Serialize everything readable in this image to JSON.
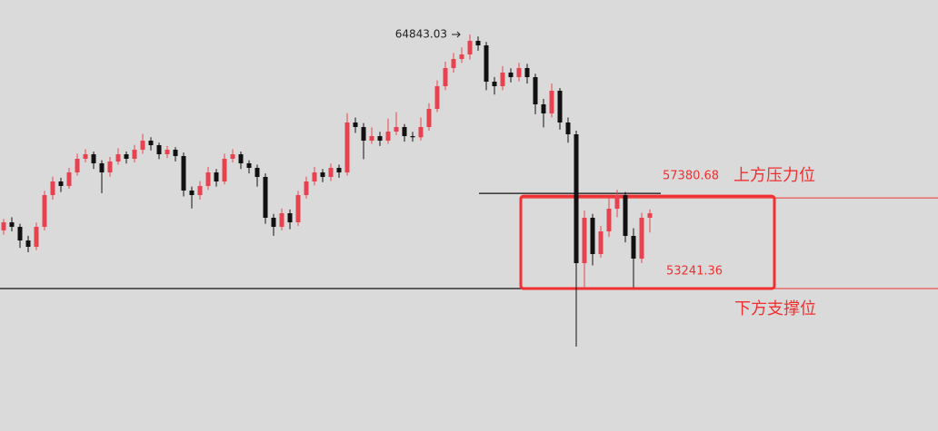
{
  "chart_data": {
    "type": "candlestick",
    "up_color": "#e8414f",
    "down_color": "#111111",
    "level_color": "#f03030",
    "ylim": [
      46738,
      66417
    ],
    "peak": 64843.03,
    "levels": [
      {
        "name": "上方压力位",
        "value": 57380.68
      },
      {
        "name": "下方支撑位",
        "value": 53241.36
      }
    ],
    "candles": [
      [
        55900,
        56420,
        55700,
        56267
      ],
      [
        56267,
        56500,
        55850,
        56059
      ],
      [
        56059,
        56200,
        55100,
        55438
      ],
      [
        55438,
        55650,
        54900,
        55148
      ],
      [
        55148,
        56250,
        55000,
        56059
      ],
      [
        56059,
        57700,
        55900,
        57510
      ],
      [
        57510,
        58350,
        57300,
        58131
      ],
      [
        58131,
        58300,
        57650,
        57924
      ],
      [
        57924,
        58750,
        57800,
        58545
      ],
      [
        58545,
        59400,
        58400,
        59167
      ],
      [
        59167,
        59600,
        59000,
        59374
      ],
      [
        59374,
        59500,
        58700,
        58960
      ],
      [
        58960,
        59100,
        57600,
        58545
      ],
      [
        58545,
        59250,
        58350,
        59042
      ],
      [
        59042,
        59650,
        58900,
        59374
      ],
      [
        59374,
        59500,
        58950,
        59167
      ],
      [
        59167,
        59800,
        59000,
        59581
      ],
      [
        59581,
        60300,
        59400,
        59995
      ],
      [
        59995,
        60150,
        59550,
        59788
      ],
      [
        59788,
        59900,
        59150,
        59374
      ],
      [
        59374,
        59750,
        59200,
        59581
      ],
      [
        59581,
        59700,
        59050,
        59291
      ],
      [
        59291,
        59450,
        57450,
        57717
      ],
      [
        57717,
        57900,
        56900,
        57510
      ],
      [
        57510,
        58150,
        57300,
        57924
      ],
      [
        57924,
        58800,
        57750,
        58545
      ],
      [
        58545,
        58700,
        57900,
        58131
      ],
      [
        58131,
        59400,
        58000,
        59167
      ],
      [
        59167,
        59600,
        59000,
        59374
      ],
      [
        59374,
        59500,
        58700,
        58960
      ],
      [
        58960,
        59100,
        58500,
        58752
      ],
      [
        58752,
        58900,
        57900,
        58338
      ],
      [
        58338,
        58500,
        56200,
        56474
      ],
      [
        56474,
        56650,
        55650,
        56059
      ],
      [
        56059,
        56900,
        55900,
        56681
      ],
      [
        56681,
        56850,
        55950,
        56267
      ],
      [
        56267,
        57700,
        56100,
        57510
      ],
      [
        57510,
        58350,
        57350,
        58131
      ],
      [
        58131,
        58800,
        57950,
        58545
      ],
      [
        58545,
        58700,
        58100,
        58338
      ],
      [
        58338,
        58950,
        58150,
        58752
      ],
      [
        58752,
        58900,
        58300,
        58545
      ],
      [
        58545,
        61250,
        58400,
        60824
      ],
      [
        60824,
        61050,
        60350,
        60617
      ],
      [
        60617,
        60800,
        59150,
        59995
      ],
      [
        59995,
        60600,
        59850,
        60202
      ],
      [
        60202,
        60400,
        59750,
        59995
      ],
      [
        59995,
        61000,
        59850,
        60410
      ],
      [
        60410,
        61300,
        60250,
        60617
      ],
      [
        60617,
        60750,
        59950,
        60202
      ],
      [
        60202,
        60400,
        59950,
        60150
      ],
      [
        60150,
        61050,
        60000,
        60617
      ],
      [
        60617,
        61700,
        60450,
        61445
      ],
      [
        61445,
        62750,
        61300,
        62481
      ],
      [
        62481,
        63600,
        62300,
        63310
      ],
      [
        63310,
        64000,
        63100,
        63724
      ],
      [
        63724,
        64250,
        63550,
        63931
      ],
      [
        63931,
        64843.03,
        63700,
        64553
      ],
      [
        64553,
        64750,
        64100,
        64345
      ],
      [
        64345,
        64500,
        62300,
        62688
      ],
      [
        62688,
        62900,
        62100,
        62481
      ],
      [
        62481,
        63400,
        62300,
        63103
      ],
      [
        63103,
        63300,
        62650,
        62895
      ],
      [
        62895,
        63550,
        62700,
        63310
      ],
      [
        63310,
        63500,
        62600,
        62895
      ],
      [
        62895,
        63050,
        61200,
        61653
      ],
      [
        61653,
        61900,
        60600,
        61238
      ],
      [
        61238,
        62600,
        61050,
        62274
      ],
      [
        62274,
        62400,
        60500,
        60824
      ],
      [
        60824,
        61050,
        59900,
        60285
      ],
      [
        60285,
        60450,
        50591,
        54402
      ],
      [
        54402,
        56800,
        53241.36,
        56474
      ],
      [
        56474,
        56650,
        54300,
        54817
      ],
      [
        54817,
        56100,
        54650,
        55852
      ],
      [
        55852,
        57380.68,
        55600,
        56888
      ],
      [
        56888,
        57750,
        56500,
        57510
      ],
      [
        57510,
        57650,
        55350,
        55645
      ],
      [
        55645,
        56000,
        53300,
        54609
      ],
      [
        54609,
        56700,
        54400,
        56474
      ],
      [
        56474,
        56850,
        55800,
        56681
      ]
    ]
  }
}
